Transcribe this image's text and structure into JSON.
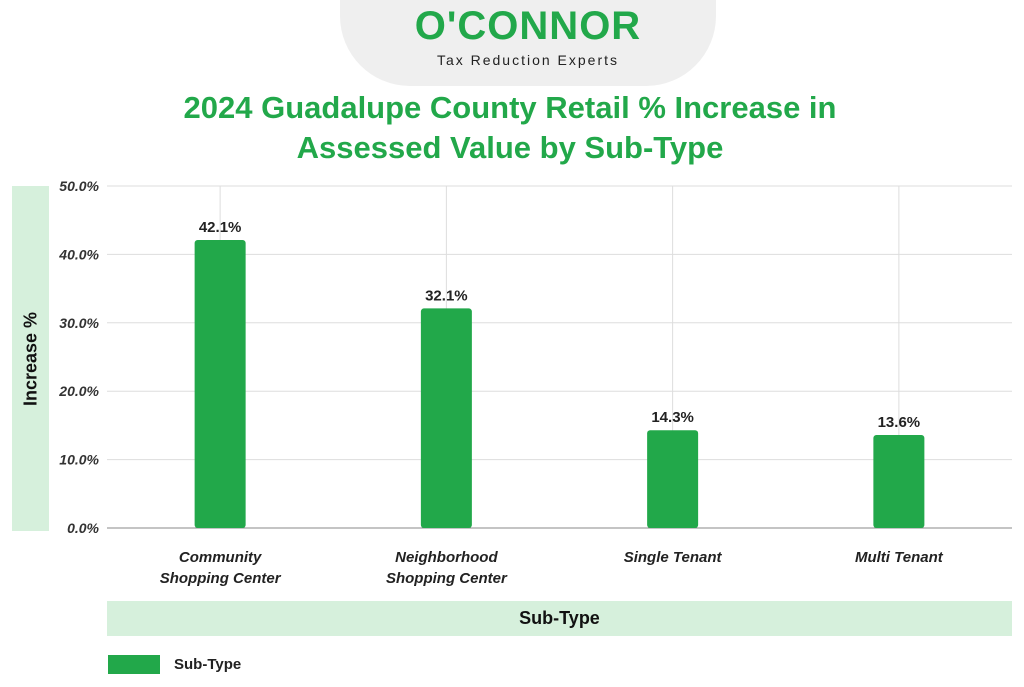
{
  "logo": {
    "name": "O'CONNOR",
    "tagline": "Tax Reduction Experts"
  },
  "colors": {
    "brand_green": "#22a84a",
    "label_band": "#d6f0dc",
    "grid": "#dddddd",
    "text": "#222222"
  },
  "chart_data": {
    "type": "bar",
    "title_lines": [
      "2024 Guadalupe County Retail % Increase in",
      "Assessed Value by Sub-Type"
    ],
    "categories": [
      [
        "Community",
        "Shopping Center"
      ],
      [
        "Neighborhood",
        "Shopping Center"
      ],
      [
        "Single Tenant"
      ],
      [
        "Multi Tenant"
      ]
    ],
    "series": [
      {
        "name": "Sub-Type",
        "values": [
          42.1,
          32.1,
          14.3,
          13.6
        ],
        "labels": [
          "42.1%",
          "32.1%",
          "14.3%",
          "13.6%"
        ]
      }
    ],
    "xlabel": "Sub-Type",
    "ylabel": "Increase %",
    "ylim": [
      0,
      50
    ],
    "yticks": [
      0,
      10,
      20,
      30,
      40,
      50
    ],
    "ytick_labels": [
      "0.0%",
      "10.0%",
      "20.0%",
      "30.0%",
      "40.0%",
      "50.0%"
    ],
    "grid": true,
    "legend_position": "bottom-left"
  }
}
